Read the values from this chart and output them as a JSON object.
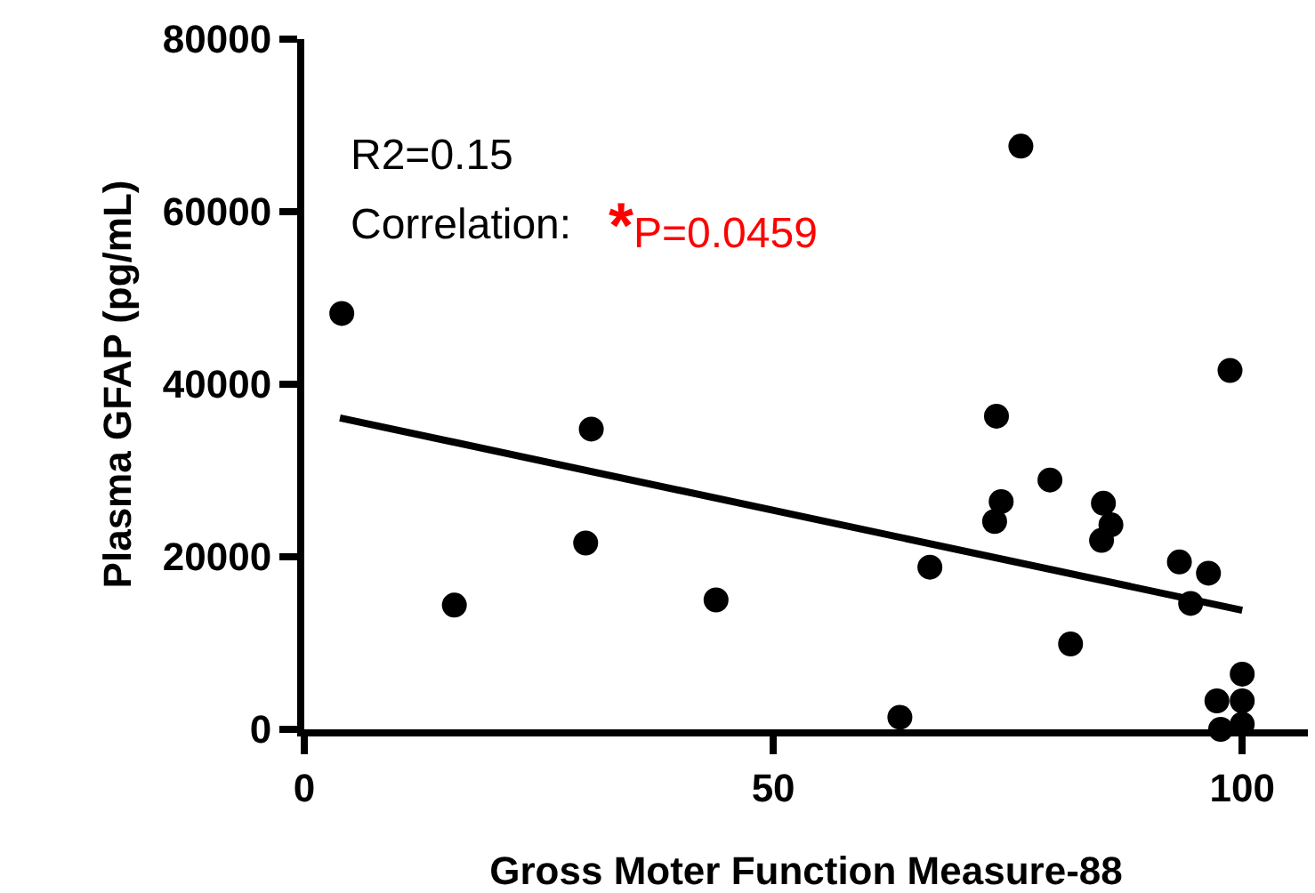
{
  "chart_data": {
    "type": "scatter",
    "xlabel": "Gross Moter Function Measure-88",
    "ylabel": "Plasma GFAP (pg/mL)",
    "xlim": [
      0,
      107
    ],
    "xticks": [
      0,
      50,
      100
    ],
    "ylim": [
      0,
      80000
    ],
    "yticks": [
      0,
      20000,
      40000,
      60000,
      80000
    ],
    "marker": "circle",
    "annotations": [
      "R2=0.15",
      "Correlation:",
      "*P=0.0459"
    ],
    "series": [
      {
        "color": "#000000",
        "x": [
          4.0,
          16,
          30.6,
          30.0,
          43.9,
          76.4,
          98.7,
          73.8,
          79.5,
          74.3,
          73.6,
          85.2,
          86.0,
          85.0,
          66.7,
          93.3,
          96.4,
          94.5,
          81.7,
          63.5,
          100,
          97.3,
          100,
          97.7,
          100
        ],
        "values": [
          48200,
          14400,
          34800,
          21600,
          15000,
          67600,
          41600,
          36300,
          28900,
          26400,
          24100,
          26200,
          23700,
          21900,
          18800,
          19400,
          18100,
          14600,
          9900,
          1400,
          6400,
          3300,
          3300,
          0,
          600
        ]
      },
      {
        "type": "line",
        "color": "#000000",
        "marker": "none",
        "x": [
          3.8,
          100
        ],
        "values": [
          36100,
          13800
        ]
      }
    ]
  }
}
